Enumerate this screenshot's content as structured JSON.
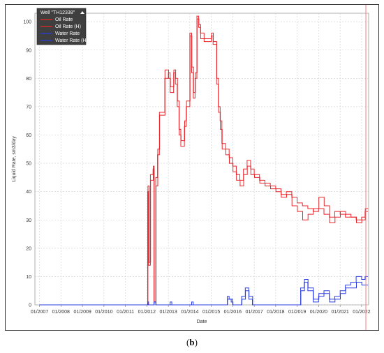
{
  "caption": {
    "open": "(",
    "letter": "b",
    "close": ")"
  },
  "colors": {
    "oil": "#e8262b",
    "water": "#2b3ce0",
    "marker": "#f28080",
    "grid": "#cfcfcf",
    "legend_bg": "#3f3f3f"
  },
  "chart_data": {
    "type": "line",
    "title": "",
    "xlabel": "Date",
    "ylabel": "Liquid Rate, sm3/day",
    "x_type": "date",
    "xlim": [
      "2006-10-15",
      "2022-05-01"
    ],
    "ylim": [
      0,
      103
    ],
    "yticks": [
      0,
      10,
      20,
      30,
      40,
      50,
      60,
      70,
      80,
      90,
      100
    ],
    "xticks": [
      "01/2007",
      "01/2008",
      "01/2009",
      "01/2010",
      "01/2011",
      "01/2012",
      "01/2013",
      "01/2014",
      "01/2015",
      "01/2016",
      "01/2017",
      "01/2018",
      "01/2019",
      "01/2020",
      "01/2021",
      "01/2022"
    ],
    "xtick_dates": [
      "2007-01-01",
      "2008-01-01",
      "2009-01-01",
      "2010-01-01",
      "2011-01-01",
      "2012-01-01",
      "2013-01-01",
      "2014-01-01",
      "2015-01-01",
      "2016-01-01",
      "2017-01-01",
      "2018-01-01",
      "2019-01-01",
      "2020-01-01",
      "2021-01-01",
      "2022-01-01"
    ],
    "grid": true,
    "legend": {
      "title": "Well \"TH12338\"",
      "position": "top-left",
      "entries": [
        "Oil Rate",
        "Oil Rate (H)",
        "Water Rate",
        "Water Rate (H)"
      ]
    },
    "vline": "2022-03-15",
    "series": [
      {
        "name": "Oil Rate",
        "color_key": "oil",
        "points": [
          [
            "2007-01-01",
            0
          ],
          [
            "2012-01-01",
            0
          ],
          [
            "2012-01-15",
            40
          ],
          [
            "2012-02-01",
            14
          ],
          [
            "2012-03-01",
            46
          ],
          [
            "2012-04-15",
            48
          ],
          [
            "2012-05-01",
            1
          ],
          [
            "2012-06-01",
            45
          ],
          [
            "2012-07-01",
            53
          ],
          [
            "2012-08-01",
            68
          ],
          [
            "2012-10-01",
            68
          ],
          [
            "2012-11-01",
            80
          ],
          [
            "2013-01-01",
            82
          ],
          [
            "2013-02-01",
            75
          ],
          [
            "2013-04-01",
            82
          ],
          [
            "2013-05-01",
            78
          ],
          [
            "2013-06-01",
            70
          ],
          [
            "2013-07-01",
            62
          ],
          [
            "2013-08-01",
            56
          ],
          [
            "2013-10-01",
            63
          ],
          [
            "2013-11-01",
            70
          ],
          [
            "2014-01-01",
            96
          ],
          [
            "2014-02-01",
            82
          ],
          [
            "2014-03-01",
            73
          ],
          [
            "2014-04-01",
            80
          ],
          [
            "2014-05-01",
            102
          ],
          [
            "2014-06-01",
            98
          ],
          [
            "2014-07-01",
            96
          ],
          [
            "2014-09-01",
            93
          ],
          [
            "2014-11-01",
            93
          ],
          [
            "2015-01-01",
            95
          ],
          [
            "2015-02-01",
            92
          ],
          [
            "2015-04-01",
            78
          ],
          [
            "2015-05-01",
            70
          ],
          [
            "2015-06-01",
            65
          ],
          [
            "2015-07-01",
            57
          ],
          [
            "2015-09-01",
            55
          ],
          [
            "2015-11-01",
            52
          ],
          [
            "2016-01-01",
            49
          ],
          [
            "2016-03-01",
            46
          ],
          [
            "2016-05-01",
            44
          ],
          [
            "2016-07-01",
            48
          ],
          [
            "2016-09-01",
            51
          ],
          [
            "2016-11-01",
            48
          ],
          [
            "2017-01-01",
            46
          ],
          [
            "2017-04-01",
            44
          ],
          [
            "2017-07-01",
            43
          ],
          [
            "2017-10-01",
            42
          ],
          [
            "2018-01-01",
            41
          ],
          [
            "2018-04-01",
            39
          ],
          [
            "2018-07-01",
            40
          ],
          [
            "2018-10-01",
            38
          ],
          [
            "2019-01-01",
            36
          ],
          [
            "2019-04-01",
            35
          ],
          [
            "2019-07-01",
            34
          ],
          [
            "2019-10-01",
            33
          ],
          [
            "2020-01-01",
            34
          ],
          [
            "2020-04-01",
            32
          ],
          [
            "2020-07-01",
            31
          ],
          [
            "2020-10-01",
            33
          ],
          [
            "2021-01-01",
            32
          ],
          [
            "2021-04-01",
            31
          ],
          [
            "2021-07-01",
            31
          ],
          [
            "2021-10-01",
            30
          ],
          [
            "2022-01-01",
            31
          ],
          [
            "2022-03-01",
            33
          ]
        ]
      },
      {
        "name": "Oil Rate (H)",
        "color_key": "oil",
        "points": [
          [
            "2007-01-01",
            0
          ],
          [
            "2012-01-01",
            0
          ],
          [
            "2012-01-20",
            42
          ],
          [
            "2012-02-10",
            15
          ],
          [
            "2012-03-05",
            44
          ],
          [
            "2012-04-20",
            49
          ],
          [
            "2012-05-05",
            1
          ],
          [
            "2012-06-05",
            42
          ],
          [
            "2012-07-05",
            55
          ],
          [
            "2012-08-05",
            67
          ],
          [
            "2012-10-05",
            67
          ],
          [
            "2012-11-05",
            83
          ],
          [
            "2013-01-05",
            80
          ],
          [
            "2013-02-05",
            77
          ],
          [
            "2013-04-05",
            83
          ],
          [
            "2013-05-05",
            80
          ],
          [
            "2013-06-05",
            72
          ],
          [
            "2013-07-05",
            60
          ],
          [
            "2013-08-05",
            58
          ],
          [
            "2013-10-05",
            65
          ],
          [
            "2013-11-05",
            72
          ],
          [
            "2014-01-05",
            95
          ],
          [
            "2014-02-05",
            84
          ],
          [
            "2014-03-05",
            75
          ],
          [
            "2014-04-05",
            82
          ],
          [
            "2014-05-05",
            101
          ],
          [
            "2014-06-05",
            99
          ],
          [
            "2014-07-05",
            94
          ],
          [
            "2014-09-05",
            94
          ],
          [
            "2014-11-05",
            94
          ],
          [
            "2015-01-05",
            96
          ],
          [
            "2015-02-05",
            93
          ],
          [
            "2015-04-05",
            80
          ],
          [
            "2015-05-05",
            68
          ],
          [
            "2015-06-05",
            62
          ],
          [
            "2015-07-05",
            55
          ],
          [
            "2015-09-05",
            53
          ],
          [
            "2015-11-05",
            50
          ],
          [
            "2016-01-05",
            47
          ],
          [
            "2016-03-05",
            44
          ],
          [
            "2016-05-05",
            42
          ],
          [
            "2016-07-05",
            46
          ],
          [
            "2016-09-05",
            49
          ],
          [
            "2016-11-05",
            46
          ],
          [
            "2017-01-05",
            45
          ],
          [
            "2017-04-05",
            43
          ],
          [
            "2017-07-05",
            42
          ],
          [
            "2017-10-05",
            41
          ],
          [
            "2018-01-05",
            40
          ],
          [
            "2018-04-05",
            38
          ],
          [
            "2018-07-05",
            39
          ],
          [
            "2018-10-05",
            35
          ],
          [
            "2019-01-05",
            33
          ],
          [
            "2019-04-05",
            30
          ],
          [
            "2019-07-05",
            32
          ],
          [
            "2019-10-05",
            34
          ],
          [
            "2020-01-05",
            38
          ],
          [
            "2020-04-05",
            35
          ],
          [
            "2020-07-05",
            29
          ],
          [
            "2020-10-05",
            31
          ],
          [
            "2021-01-05",
            33
          ],
          [
            "2021-04-05",
            32
          ],
          [
            "2021-07-05",
            31
          ],
          [
            "2021-10-05",
            29
          ],
          [
            "2022-01-05",
            30
          ],
          [
            "2022-03-05",
            34
          ]
        ]
      },
      {
        "name": "Water Rate",
        "color_key": "water",
        "points": [
          [
            "2007-01-01",
            0
          ],
          [
            "2012-01-01",
            0
          ],
          [
            "2012-01-15",
            1
          ],
          [
            "2012-02-01",
            0
          ],
          [
            "2012-05-01",
            1
          ],
          [
            "2012-06-01",
            0
          ],
          [
            "2013-01-01",
            0
          ],
          [
            "2013-02-01",
            1
          ],
          [
            "2013-03-01",
            0
          ],
          [
            "2014-01-01",
            0
          ],
          [
            "2014-02-01",
            1
          ],
          [
            "2014-03-01",
            0
          ],
          [
            "2015-09-01",
            0
          ],
          [
            "2015-10-01",
            3
          ],
          [
            "2015-11-01",
            2
          ],
          [
            "2016-01-01",
            0
          ],
          [
            "2016-06-01",
            3
          ],
          [
            "2016-08-01",
            6
          ],
          [
            "2016-10-01",
            2
          ],
          [
            "2016-12-01",
            0
          ],
          [
            "2019-01-01",
            0
          ],
          [
            "2019-03-01",
            6
          ],
          [
            "2019-05-01",
            8
          ],
          [
            "2019-07-01",
            5
          ],
          [
            "2019-10-01",
            1
          ],
          [
            "2020-01-01",
            3
          ],
          [
            "2020-04-01",
            5
          ],
          [
            "2020-07-01",
            2
          ],
          [
            "2020-10-01",
            3
          ],
          [
            "2021-01-01",
            5
          ],
          [
            "2021-04-01",
            7
          ],
          [
            "2021-07-01",
            8
          ],
          [
            "2021-10-01",
            10
          ],
          [
            "2022-01-01",
            9
          ],
          [
            "2022-03-01",
            10
          ]
        ]
      },
      {
        "name": "Water Rate (H)",
        "color_key": "water",
        "points": [
          [
            "2007-01-01",
            0
          ],
          [
            "2012-01-01",
            0
          ],
          [
            "2012-01-20",
            0
          ],
          [
            "2012-05-05",
            1
          ],
          [
            "2012-06-05",
            0
          ],
          [
            "2015-09-05",
            0
          ],
          [
            "2015-10-05",
            2
          ],
          [
            "2015-12-05",
            1
          ],
          [
            "2016-01-05",
            0
          ],
          [
            "2016-06-05",
            2
          ],
          [
            "2016-08-05",
            5
          ],
          [
            "2016-10-05",
            3
          ],
          [
            "2016-12-05",
            0
          ],
          [
            "2019-01-05",
            0
          ],
          [
            "2019-03-05",
            5
          ],
          [
            "2019-05-05",
            9
          ],
          [
            "2019-07-05",
            6
          ],
          [
            "2019-10-05",
            2
          ],
          [
            "2020-01-05",
            4
          ],
          [
            "2020-04-05",
            4
          ],
          [
            "2020-07-05",
            1
          ],
          [
            "2020-10-05",
            2
          ],
          [
            "2021-01-05",
            4
          ],
          [
            "2021-04-05",
            6
          ],
          [
            "2021-07-05",
            6
          ],
          [
            "2021-10-05",
            8
          ],
          [
            "2022-01-05",
            7
          ],
          [
            "2022-03-05",
            7
          ]
        ]
      }
    ]
  }
}
